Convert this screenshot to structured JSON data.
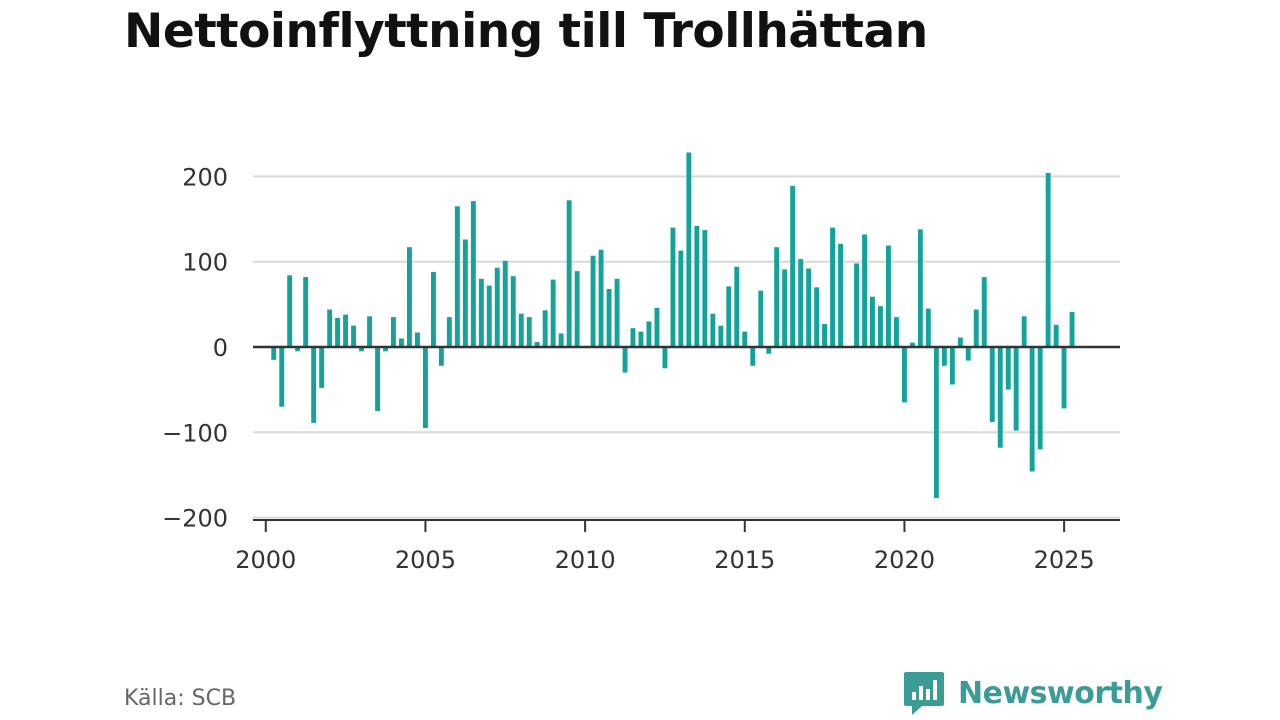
{
  "title": "Nettoinflyttning till Trollhättan",
  "source": "Källa: SCB",
  "brand": {
    "name": "Newsworthy",
    "icon": "newsworthy-logo-icon",
    "color": "#3a9c94"
  },
  "chart_data": {
    "type": "bar",
    "title": "Nettoinflyttning till Trollhättan",
    "xlabel": "",
    "ylabel": "",
    "color": "#14a39a",
    "xlim": [
      1999.6,
      2026.75
    ],
    "ylim": [
      -205,
      240
    ],
    "x_ticks": [
      2000,
      2005,
      2010,
      2015,
      2020,
      2025
    ],
    "y_ticks": [
      -200,
      -100,
      0,
      100,
      200
    ],
    "y_tick_labels": [
      "−200",
      "−100",
      "0",
      "100",
      "200"
    ],
    "grid": true,
    "start_year": 2000,
    "periods_per_year": 4,
    "values": [
      -15,
      -70,
      84,
      -5,
      82,
      -89,
      -48,
      44,
      34,
      38,
      25,
      -5,
      36,
      -75,
      -5,
      35,
      10,
      117,
      17,
      -95,
      88,
      -22,
      35,
      165,
      126,
      171,
      80,
      72,
      93,
      101,
      83,
      39,
      35,
      6,
      43,
      79,
      16,
      172,
      89,
      0,
      107,
      114,
      68,
      80,
      -30,
      22,
      18,
      30,
      46,
      -25,
      140,
      113,
      228,
      142,
      137,
      39,
      25,
      71,
      94,
      18,
      -22,
      66,
      -8,
      117,
      91,
      189,
      103,
      92,
      70,
      27,
      140,
      121,
      0,
      98,
      132,
      59,
      48,
      119,
      35,
      -65,
      5,
      138,
      45,
      -177,
      -22,
      -44,
      11,
      -16,
      44,
      82,
      -88,
      -118,
      -50,
      -98,
      36,
      -146,
      -120,
      204,
      26,
      -72,
      41
    ]
  }
}
